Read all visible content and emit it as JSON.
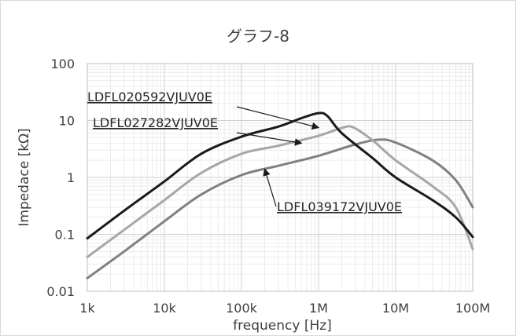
{
  "chart_data": {
    "type": "line",
    "title": "グラフ-8",
    "xlabel": "frequency [Hz]",
    "ylabel": "Impedace [kΩ]",
    "x_scale": "log",
    "y_scale": "log",
    "xlim": [
      1000,
      100000000
    ],
    "ylim": [
      0.01,
      100
    ],
    "grid": true,
    "x_ticks": [
      {
        "value": 1000,
        "label": "1k"
      },
      {
        "value": 10000,
        "label": "10k"
      },
      {
        "value": 100000,
        "label": "100k"
      },
      {
        "value": 1000000,
        "label": "1M"
      },
      {
        "value": 10000000,
        "label": "10M"
      },
      {
        "value": 100000000,
        "label": "100M"
      }
    ],
    "y_ticks": [
      {
        "value": 0.01,
        "label": "0.01"
      },
      {
        "value": 0.1,
        "label": "0.1"
      },
      {
        "value": 1,
        "label": "1"
      },
      {
        "value": 10,
        "label": "10"
      },
      {
        "value": 100,
        "label": "100"
      }
    ],
    "series": [
      {
        "name": "LDFL020592VJUV0E",
        "color": "#1a1a1a",
        "x": [
          1000,
          3000,
          10000,
          30000,
          100000,
          300000,
          600000,
          1000000,
          1300000,
          2000000,
          5000000,
          10000000,
          30000000,
          60000000,
          100000000
        ],
        "y": [
          0.085,
          0.26,
          0.85,
          2.6,
          5.2,
          7.8,
          11,
          13.5,
          12,
          6,
          2.2,
          1.0,
          0.4,
          0.2,
          0.09
        ]
      },
      {
        "name": "LDFL027282VJUV0E",
        "color": "#a6a6a6",
        "x": [
          1000,
          3000,
          10000,
          30000,
          100000,
          300000,
          1000000,
          2000000,
          2800000,
          5000000,
          10000000,
          30000000,
          60000000,
          100000000
        ],
        "y": [
          0.04,
          0.12,
          0.4,
          1.2,
          2.6,
          3.6,
          5.4,
          7.4,
          7.6,
          4.5,
          2.0,
          0.7,
          0.3,
          0.055
        ]
      },
      {
        "name": "LDFL039172VJUV0E",
        "color": "#808080",
        "x": [
          1000,
          3000,
          10000,
          30000,
          100000,
          300000,
          1000000,
          3000000,
          6000000,
          10000000,
          30000000,
          60000000,
          100000000
        ],
        "y": [
          0.017,
          0.05,
          0.17,
          0.5,
          1.1,
          1.6,
          2.4,
          3.8,
          4.6,
          4.1,
          2.0,
          0.9,
          0.3
        ]
      }
    ],
    "annotations": [
      {
        "text": "LDFL020592VJUV0E",
        "series": 0
      },
      {
        "text": "LDFL027282VJUV0E",
        "series": 1
      },
      {
        "text": "LDFL039172VJUV0E",
        "series": 2
      }
    ]
  }
}
